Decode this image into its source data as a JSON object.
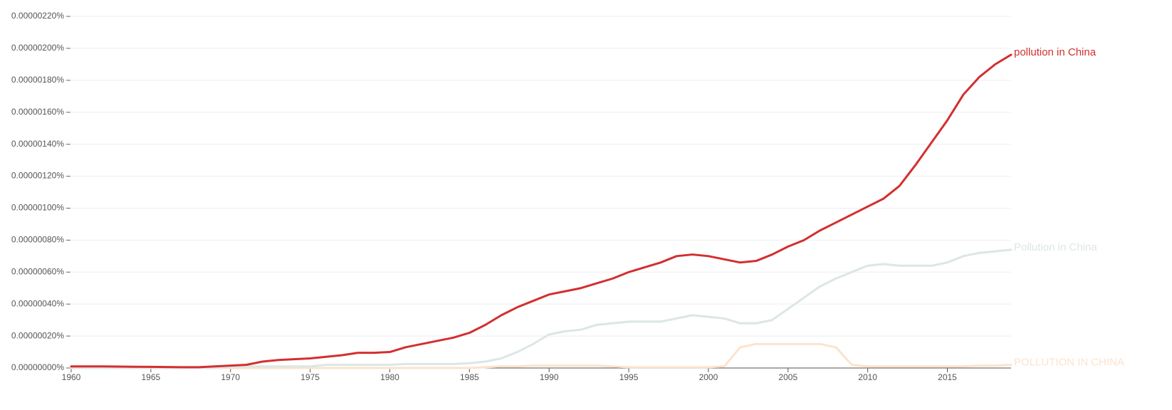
{
  "chart_data": {
    "type": "line",
    "x": [
      1960,
      1961,
      1962,
      1963,
      1964,
      1965,
      1966,
      1967,
      1968,
      1969,
      1970,
      1971,
      1972,
      1973,
      1974,
      1975,
      1976,
      1977,
      1978,
      1979,
      1980,
      1981,
      1982,
      1983,
      1984,
      1985,
      1986,
      1987,
      1988,
      1989,
      1990,
      1991,
      1992,
      1993,
      1994,
      1995,
      1996,
      1997,
      1998,
      1999,
      2000,
      2001,
      2002,
      2003,
      2004,
      2005,
      2006,
      2007,
      2008,
      2009,
      2010,
      2011,
      2012,
      2013,
      2014,
      2015,
      2016,
      2017,
      2018,
      2019
    ],
    "xlim": [
      1960,
      2019
    ],
    "xticks": [
      1960,
      1965,
      1970,
      1975,
      1980,
      1985,
      1990,
      1995,
      2000,
      2005,
      2010,
      2015
    ],
    "ylim": [
      0,
      2.2e-06
    ],
    "yticks": [
      {
        "value": 0,
        "label": "0.00000000%"
      },
      {
        "value": 2e-07,
        "label": "0.00000020%"
      },
      {
        "value": 4e-07,
        "label": "0.00000040%"
      },
      {
        "value": 6e-07,
        "label": "0.00000060%"
      },
      {
        "value": 8e-07,
        "label": "0.00000080%"
      },
      {
        "value": 1e-06,
        "label": "0.00000100%"
      },
      {
        "value": 1.2e-06,
        "label": "0.00000120%"
      },
      {
        "value": 1.4e-06,
        "label": "0.00000140%"
      },
      {
        "value": 1.6e-06,
        "label": "0.00000160%"
      },
      {
        "value": 1.8e-06,
        "label": "0.00000180%"
      },
      {
        "value": 2e-06,
        "label": "0.00000200%"
      },
      {
        "value": 2.2e-06,
        "label": "0.00000220%"
      }
    ],
    "grid": true,
    "series": [
      {
        "name": "POLLUTION IN CHINA",
        "color": "#fde3cc",
        "values": [
          0.0,
          0.0,
          0.0,
          0.0,
          0.0,
          0.0,
          0.0,
          0.0,
          0.0,
          0.0,
          0.0,
          0.0,
          0.0,
          0.0,
          0.0,
          0.0,
          0.0,
          0.0,
          0.0,
          0.0,
          0.0,
          0.0,
          0.0,
          0.0,
          0.0,
          0.0,
          5e-09,
          1e-08,
          1e-08,
          1.5e-08,
          1.5e-08,
          1.5e-08,
          1.5e-08,
          1.5e-08,
          1e-08,
          5e-09,
          5e-09,
          5e-09,
          5e-09,
          5e-09,
          5e-09,
          1e-08,
          1.3e-07,
          1.5e-07,
          1.5e-07,
          1.5e-07,
          1.5e-07,
          1.5e-07,
          1.3e-07,
          2e-08,
          1e-08,
          1e-08,
          1e-08,
          1e-08,
          1e-08,
          1e-08,
          1e-08,
          1.5e-08,
          1.5e-08,
          2e-08
        ]
      },
      {
        "name": "Pollution in China",
        "color": "#dce7e4",
        "values": [
          0.0,
          0.0,
          0.0,
          0.0,
          0.0,
          0.0,
          0.0,
          0.0,
          0.0,
          0.0,
          5e-09,
          1e-08,
          1e-08,
          1e-08,
          1e-08,
          1e-08,
          2e-08,
          2e-08,
          2e-08,
          2e-08,
          2e-08,
          2.5e-08,
          2.5e-08,
          2.5e-08,
          2.5e-08,
          3e-08,
          4e-08,
          6e-08,
          1e-07,
          1.5e-07,
          2.1e-07,
          2.3e-07,
          2.4e-07,
          2.7e-07,
          2.8e-07,
          2.9e-07,
          2.9e-07,
          2.9e-07,
          3.1e-07,
          3.3e-07,
          3.2e-07,
          3.1e-07,
          2.8e-07,
          2.8e-07,
          3e-07,
          3.7e-07,
          4.4e-07,
          5.1e-07,
          5.6e-07,
          6e-07,
          6.4e-07,
          6.5e-07,
          6.4e-07,
          6.4e-07,
          6.4e-07,
          6.6e-07,
          7e-07,
          7.2e-07,
          7.3e-07,
          7.4e-07
        ]
      },
      {
        "name": "pollution in China",
        "color": "#d32f2f",
        "values": [
          1e-08,
          1e-08,
          1e-08,
          9e-09,
          8e-09,
          7e-09,
          6e-09,
          5e-09,
          5e-09,
          1e-08,
          1.5e-08,
          2e-08,
          4e-08,
          5e-08,
          5.5e-08,
          6e-08,
          7e-08,
          8e-08,
          9.5e-08,
          9.5e-08,
          1e-07,
          1.3e-07,
          1.5e-07,
          1.7e-07,
          1.9e-07,
          2.2e-07,
          2.7e-07,
          3.3e-07,
          3.8e-07,
          4.2e-07,
          4.6e-07,
          4.8e-07,
          5e-07,
          5.3e-07,
          5.6e-07,
          6e-07,
          6.3e-07,
          6.6e-07,
          7e-07,
          7.1e-07,
          7e-07,
          6.8e-07,
          6.6e-07,
          6.7e-07,
          7.1e-07,
          7.6e-07,
          8e-07,
          8.6e-07,
          9.1e-07,
          9.6e-07,
          1.01e-06,
          1.06e-06,
          1.14e-06,
          1.27e-06,
          1.41e-06,
          1.55e-06,
          1.71e-06,
          1.82e-06,
          1.9e-06,
          1.96e-06
        ]
      }
    ]
  }
}
